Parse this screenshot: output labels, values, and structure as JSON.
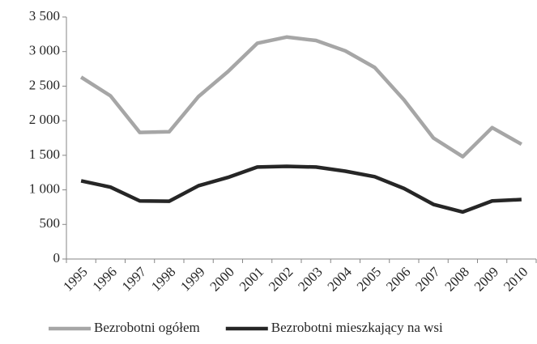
{
  "chart_data": {
    "type": "line",
    "categories": [
      "1995",
      "1996",
      "1997",
      "1998",
      "1999",
      "2000",
      "2001",
      "2002",
      "2003",
      "2004",
      "2005",
      "2006",
      "2007",
      "2008",
      "2009",
      "2010"
    ],
    "series": [
      {
        "name": "Bezrobotni ogółem",
        "color": "#a6a6a6",
        "values": [
          2630,
          2360,
          1830,
          1840,
          2350,
          2710,
          3120,
          3210,
          3160,
          3010,
          2770,
          2300,
          1750,
          1480,
          1900,
          1660
        ]
      },
      {
        "name": "Bezrobotni mieszkający na wsi",
        "color": "#262626",
        "values": [
          1130,
          1040,
          840,
          835,
          1060,
          1180,
          1330,
          1340,
          1330,
          1270,
          1190,
          1020,
          790,
          680,
          840,
          860
        ]
      }
    ],
    "ylim": [
      0,
      3500
    ],
    "yticks": [
      0,
      500,
      {
        "value": 1000,
        "label": "1 000"
      },
      {
        "value": 1500,
        "label": "1 500"
      },
      {
        "value": 2000,
        "label": "2 000"
      },
      {
        "value": 2500,
        "label": "2 500"
      },
      {
        "value": 3000,
        "label": "3 000"
      },
      {
        "value": 3500,
        "label": "3 500"
      }
    ],
    "grid": false,
    "legend": "bottom"
  }
}
